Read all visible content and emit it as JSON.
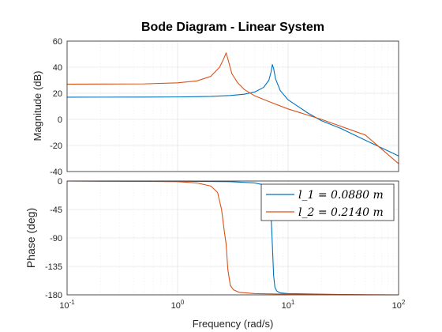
{
  "chart_data": {
    "type": "line",
    "title": "Bode Diagram - Linear System",
    "xlabel": "Frequency  (rad/s)",
    "xscale": "log",
    "xlim": [
      0.1,
      100
    ],
    "x_tick_labels": [
      {
        "base": "10",
        "exp": "-1",
        "value": 0.1
      },
      {
        "base": "10",
        "exp": "0",
        "value": 1
      },
      {
        "base": "10",
        "exp": "1",
        "value": 10
      },
      {
        "base": "10",
        "exp": "2",
        "value": 100
      }
    ],
    "grid": true,
    "legend": {
      "placement": "top-right of phase panel",
      "entries": [
        "l_1 = 0.0880 m",
        "l_2 = 0.2140 m"
      ]
    },
    "colors": {
      "series1": "#0072BD",
      "series2": "#D95319",
      "axes": "#262626"
    },
    "panels": [
      {
        "name": "magnitude",
        "ylabel": "Magnitude (dB)",
        "ylim": [
          -40,
          60
        ],
        "yticks": [
          "60",
          "40",
          "20",
          "0",
          "-20",
          "-40"
        ],
        "series": [
          {
            "name": "l_1 = 0.0880 m",
            "x": [
              0.1,
              0.5,
              1,
              2,
              3,
              4,
              5,
              6,
              6.7,
              7.0,
              7.2,
              7.4,
              7.7,
              8.5,
              10,
              15,
              20,
              30,
              50,
              100
            ],
            "y": [
              17,
              17.1,
              17.2,
              17.6,
              18.3,
              19.3,
              21,
              24.5,
              30,
              36,
              42,
              39,
              31,
              22,
              15,
              5,
              -1,
              -7,
              -16,
              -28
            ]
          },
          {
            "name": "l_2 = 0.2140 m",
            "x": [
              0.1,
              0.5,
              1,
              1.5,
              2.0,
              2.4,
              2.6,
              2.75,
              2.9,
              3.1,
              3.5,
              4,
              5,
              7,
              10,
              20,
              50,
              100
            ],
            "y": [
              27,
              27.2,
              28,
              29.5,
              33,
              40,
              46,
              51,
              44,
              35,
              28,
              23,
              18,
              13,
              8,
              0,
              -12,
              -34
            ]
          }
        ]
      },
      {
        "name": "phase",
        "ylabel": "Phase (deg)",
        "ylim": [
          -180,
          0
        ],
        "yticks": [
          "0",
          "-45",
          "-90",
          "-135",
          "-180"
        ],
        "series": [
          {
            "name": "l_1 = 0.0880 m",
            "x": [
              0.1,
              1,
              3,
              5,
              6,
              6.6,
              6.9,
              7.1,
              7.2,
              7.4,
              7.6,
              7.9,
              8.5,
              10,
              20,
              50,
              100
            ],
            "y": [
              0,
              -0.3,
              -1,
              -3,
              -6,
              -12,
              -30,
              -75,
              -100,
              -150,
              -168,
              -174,
              -177,
              -178,
              -179,
              -180,
              -180
            ]
          },
          {
            "name": "l_2 = 0.2140 m",
            "x": [
              0.1,
              0.5,
              1,
              1.5,
              2.0,
              2.3,
              2.5,
              2.65,
              2.75,
              2.85,
              3.0,
              3.2,
              3.6,
              5,
              10,
              100
            ],
            "y": [
              0,
              -0.5,
              -1,
              -3,
              -8,
              -18,
              -45,
              -80,
              -100,
              -140,
              -165,
              -172,
              -176,
              -178,
              -179,
              -180
            ]
          }
        ]
      }
    ]
  }
}
